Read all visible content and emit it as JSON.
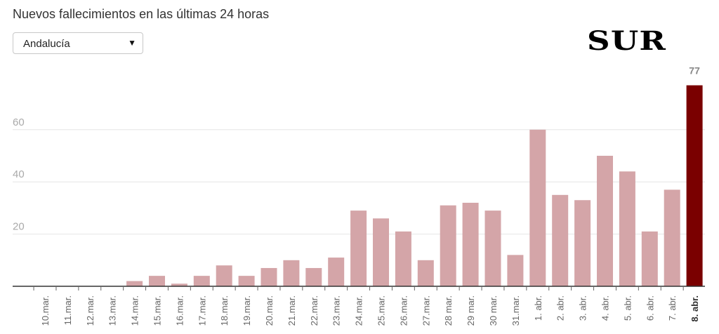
{
  "title": "Nuevos fallecimientos en las últimas 24 horas",
  "selector": {
    "value": "Andalucía"
  },
  "brand": {
    "logo_text": "SUR"
  },
  "colors": {
    "bar": "#d4a5a8",
    "highlight_bar": "#7a0000",
    "axis_text": "#aaaaaa",
    "grid": "#e6e6e6",
    "axis_line": "#333333"
  },
  "chart_data": {
    "type": "bar",
    "title": "Nuevos fallecimientos en las últimas 24 horas",
    "categories": [
      "10.mar.",
      "11.mar.",
      "12.mar.",
      "13.mar.",
      "14.mar.",
      "15.mar.",
      "16.mar.",
      "17.mar.",
      "18.mar.",
      "19.mar.",
      "20.mar.",
      "21.mar.",
      "22.mar.",
      "23.mar.",
      "24.mar.",
      "25.mar.",
      "26.mar.",
      "27.mar.",
      "28 mar.",
      "29 mar.",
      "30 mar.",
      "31.mar.",
      "1. abr.",
      "2. abr.",
      "3. abr.",
      "4. abr.",
      "5. abr.",
      "6. abr.",
      "7. abr.",
      "8. abr."
    ],
    "values": [
      0,
      0,
      0,
      0,
      2,
      4,
      1,
      4,
      8,
      4,
      7,
      10,
      7,
      11,
      29,
      26,
      21,
      10,
      31,
      32,
      29,
      12,
      60,
      35,
      33,
      50,
      44,
      21,
      37,
      77
    ],
    "highlight_index": 29,
    "value_label": "77",
    "yticks": [
      20,
      40,
      60
    ],
    "ylim": [
      0,
      80
    ],
    "grid": true,
    "xlabel": "",
    "ylabel": ""
  }
}
